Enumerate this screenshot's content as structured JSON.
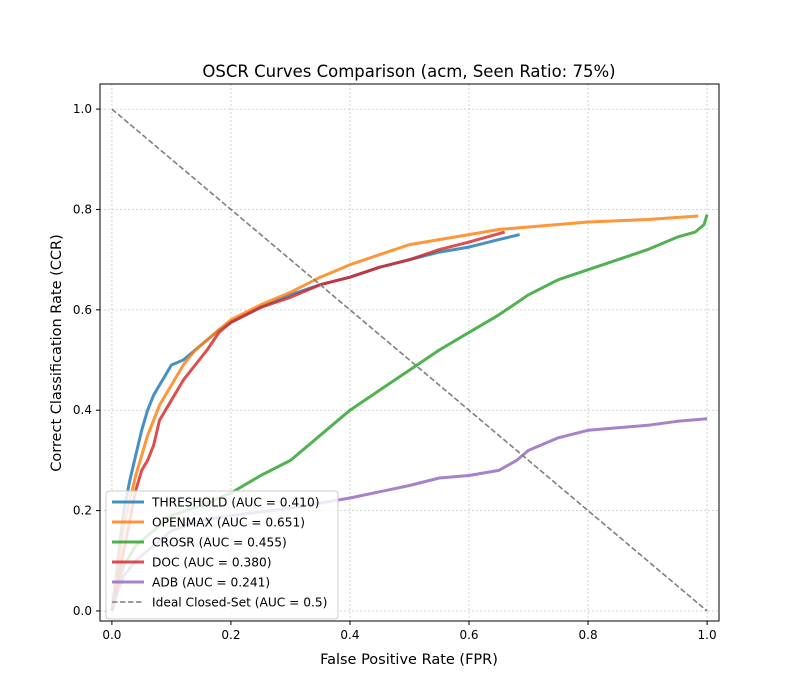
{
  "chart_data": {
    "type": "line",
    "title": "OSCR Curves Comparison (acm, Seen Ratio: 75%)",
    "xlabel": "False Positive Rate (FPR)",
    "ylabel": "Correct Classification Rate (CCR)",
    "xlim": [
      -0.02,
      1.02
    ],
    "ylim": [
      -0.02,
      1.05
    ],
    "xticks": [
      "0.0",
      "0.2",
      "0.4",
      "0.6",
      "0.8",
      "1.0"
    ],
    "yticks": [
      "0.0",
      "0.2",
      "0.4",
      "0.6",
      "0.8",
      "1.0"
    ],
    "grid": true,
    "legend_position": "lower-left",
    "series": [
      {
        "name": "THRESHOLD (AUC = 0.410)",
        "color": "#1f77b4",
        "style": "solid",
        "x": [
          0.0,
          0.01,
          0.02,
          0.03,
          0.04,
          0.05,
          0.06,
          0.07,
          0.08,
          0.09,
          0.1,
          0.12,
          0.14,
          0.16,
          0.18,
          0.2,
          0.25,
          0.3,
          0.35,
          0.4,
          0.45,
          0.5,
          0.55,
          0.6,
          0.65,
          0.685
        ],
        "y": [
          0.0,
          0.1,
          0.2,
          0.26,
          0.31,
          0.36,
          0.4,
          0.43,
          0.45,
          0.47,
          0.49,
          0.5,
          0.52,
          0.54,
          0.56,
          0.575,
          0.605,
          0.63,
          0.65,
          0.665,
          0.685,
          0.7,
          0.715,
          0.725,
          0.74,
          0.75
        ]
      },
      {
        "name": "OPENMAX (AUC = 0.651)",
        "color": "#ff7f0e",
        "style": "solid",
        "x": [
          0.0,
          0.01,
          0.02,
          0.03,
          0.04,
          0.05,
          0.06,
          0.07,
          0.08,
          0.1,
          0.12,
          0.14,
          0.16,
          0.18,
          0.2,
          0.25,
          0.3,
          0.35,
          0.4,
          0.45,
          0.5,
          0.55,
          0.6,
          0.65,
          0.7,
          0.8,
          0.9,
          0.985
        ],
        "y": [
          0.0,
          0.08,
          0.17,
          0.22,
          0.27,
          0.31,
          0.35,
          0.38,
          0.41,
          0.45,
          0.49,
          0.52,
          0.54,
          0.56,
          0.58,
          0.61,
          0.635,
          0.665,
          0.69,
          0.71,
          0.73,
          0.74,
          0.75,
          0.76,
          0.765,
          0.775,
          0.78,
          0.787
        ]
      },
      {
        "name": "CROSR (AUC = 0.455)",
        "color": "#2ca02c",
        "style": "solid",
        "x": [
          0.0,
          0.01,
          0.02,
          0.04,
          0.06,
          0.08,
          0.1,
          0.15,
          0.2,
          0.25,
          0.3,
          0.35,
          0.4,
          0.45,
          0.5,
          0.55,
          0.6,
          0.65,
          0.7,
          0.75,
          0.8,
          0.85,
          0.9,
          0.95,
          0.98,
          0.995,
          1.0
        ],
        "y": [
          0.0,
          0.05,
          0.09,
          0.13,
          0.15,
          0.17,
          0.19,
          0.21,
          0.235,
          0.27,
          0.3,
          0.35,
          0.4,
          0.44,
          0.48,
          0.52,
          0.555,
          0.59,
          0.63,
          0.66,
          0.68,
          0.7,
          0.72,
          0.745,
          0.755,
          0.77,
          0.79
        ]
      },
      {
        "name": "DOC (AUC = 0.380)",
        "color": "#d62728",
        "style": "solid",
        "x": [
          0.0,
          0.01,
          0.02,
          0.03,
          0.04,
          0.05,
          0.06,
          0.07,
          0.08,
          0.09,
          0.1,
          0.12,
          0.14,
          0.16,
          0.18,
          0.2,
          0.25,
          0.3,
          0.35,
          0.4,
          0.45,
          0.5,
          0.55,
          0.6,
          0.66
        ],
        "y": [
          0.0,
          0.06,
          0.12,
          0.18,
          0.24,
          0.28,
          0.3,
          0.33,
          0.38,
          0.4,
          0.42,
          0.46,
          0.49,
          0.52,
          0.555,
          0.575,
          0.605,
          0.625,
          0.65,
          0.665,
          0.685,
          0.7,
          0.72,
          0.735,
          0.755
        ]
      },
      {
        "name": "ADB (AUC = 0.241)",
        "color": "#9467bd",
        "style": "solid",
        "x": [
          0.0,
          0.01,
          0.02,
          0.04,
          0.06,
          0.08,
          0.1,
          0.15,
          0.2,
          0.3,
          0.4,
          0.5,
          0.55,
          0.6,
          0.65,
          0.68,
          0.7,
          0.75,
          0.8,
          0.85,
          0.9,
          0.95,
          1.0
        ],
        "y": [
          0.0,
          0.04,
          0.07,
          0.1,
          0.12,
          0.14,
          0.16,
          0.18,
          0.19,
          0.205,
          0.225,
          0.25,
          0.265,
          0.27,
          0.28,
          0.3,
          0.32,
          0.345,
          0.36,
          0.365,
          0.37,
          0.378,
          0.383
        ]
      },
      {
        "name": "Ideal Closed-Set (AUC = 0.5)",
        "color": "#7f7f7f",
        "style": "dashed",
        "x": [
          0.0,
          1.0
        ],
        "y": [
          1.0,
          0.0
        ]
      }
    ]
  }
}
